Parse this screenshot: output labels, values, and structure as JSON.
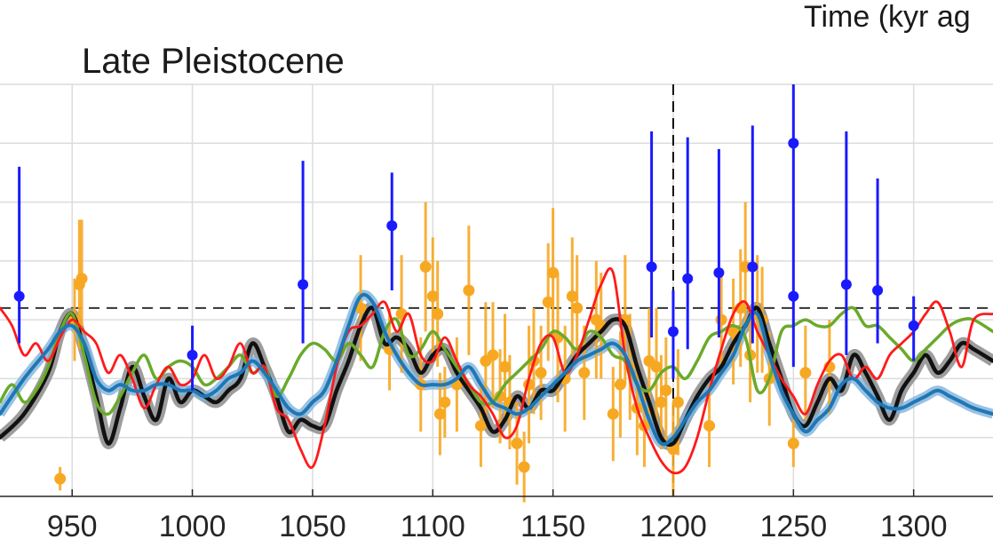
{
  "chart_data": {
    "type": "line",
    "title": "Late Pleistocene",
    "xlabel": "Time (kyr ag",
    "ylabel": "",
    "xlim": [
      920,
      1333
    ],
    "ylim": [
      0,
      7
    ],
    "x_ticks": [
      950,
      1000,
      1050,
      1100,
      1150,
      1200,
      1250,
      1300
    ],
    "grid": true,
    "reference_lines": {
      "horizontal_y": 3.2,
      "vertical_x": 1200
    },
    "colors": {
      "black": "#111111",
      "black_band": "#8c8c8c",
      "blue": "#1f77b4",
      "blue_band": "#7fb3dc",
      "red": "#ff1a1a",
      "green": "#6aaa2a",
      "orange": "#f7a823",
      "darkblue": "#1a1aff",
      "grid": "#dcdcdc",
      "refline": "#333333"
    },
    "series": [
      {
        "style": "black",
        "x": [
          920,
          930,
          940,
          945,
          950,
          955,
          960,
          965,
          970,
          975,
          980,
          985,
          990,
          995,
          1000,
          1005,
          1010,
          1015,
          1020,
          1025,
          1030,
          1035,
          1040,
          1045,
          1050,
          1055,
          1060,
          1065,
          1070,
          1075,
          1080,
          1085,
          1090,
          1095,
          1100,
          1105,
          1110,
          1115,
          1120,
          1125,
          1130,
          1135,
          1140,
          1145,
          1150,
          1155,
          1160,
          1165,
          1170,
          1175,
          1180,
          1185,
          1190,
          1195,
          1200,
          1205,
          1210,
          1215,
          1220,
          1225,
          1230,
          1235,
          1240,
          1245,
          1250,
          1255,
          1260,
          1265,
          1270,
          1275,
          1280,
          1285,
          1290,
          1295,
          1300,
          1305,
          1310,
          1315,
          1320,
          1325,
          1333
        ],
        "y": [
          1.0,
          1.4,
          2.1,
          2.8,
          3.1,
          2.5,
          1.7,
          0.9,
          1.5,
          2.2,
          1.7,
          1.3,
          2.0,
          1.6,
          1.8,
          1.7,
          1.6,
          1.8,
          2.0,
          2.6,
          2.2,
          1.7,
          1.1,
          1.3,
          1.2,
          1.2,
          1.8,
          2.3,
          2.9,
          3.2,
          2.6,
          2.7,
          2.5,
          2.1,
          2.4,
          2.5,
          2.1,
          1.8,
          1.5,
          1.1,
          1.3,
          1.7,
          1.5,
          1.8,
          1.8,
          2.1,
          2.4,
          2.6,
          2.8,
          3.0,
          2.9,
          2.2,
          1.6,
          1.0,
          0.9,
          1.3,
          1.7,
          2.0,
          2.2,
          2.6,
          2.9,
          3.2,
          2.6,
          2.0,
          1.4,
          1.2,
          1.6,
          2.0,
          1.8,
          2.4,
          2.1,
          1.7,
          1.3,
          1.8,
          2.1,
          2.4,
          2.1,
          2.3,
          2.6,
          2.5,
          2.3
        ]
      },
      {
        "style": "blue",
        "x": [
          920,
          930,
          940,
          945,
          950,
          955,
          960,
          965,
          970,
          975,
          980,
          985,
          990,
          995,
          1000,
          1005,
          1010,
          1015,
          1020,
          1025,
          1030,
          1035,
          1040,
          1045,
          1050,
          1055,
          1060,
          1065,
          1070,
          1075,
          1080,
          1085,
          1090,
          1095,
          1100,
          1105,
          1110,
          1115,
          1120,
          1125,
          1130,
          1135,
          1140,
          1145,
          1150,
          1155,
          1160,
          1165,
          1170,
          1175,
          1180,
          1185,
          1190,
          1195,
          1200,
          1205,
          1210,
          1215,
          1220,
          1225,
          1230,
          1235,
          1240,
          1245,
          1250,
          1255,
          1260,
          1265,
          1270,
          1275,
          1280,
          1285,
          1290,
          1295,
          1300,
          1305,
          1310,
          1315,
          1320,
          1325,
          1333
        ],
        "y": [
          1.4,
          2.0,
          2.5,
          2.8,
          2.9,
          2.6,
          2.0,
          1.8,
          1.9,
          1.8,
          1.8,
          1.9,
          1.9,
          1.8,
          1.8,
          1.7,
          1.8,
          2.0,
          2.1,
          2.3,
          2.1,
          1.8,
          1.5,
          1.4,
          1.6,
          1.8,
          2.3,
          2.9,
          3.4,
          3.3,
          2.8,
          2.4,
          2.1,
          1.9,
          1.9,
          1.9,
          2.0,
          2.2,
          1.9,
          1.6,
          1.5,
          1.4,
          1.5,
          1.7,
          1.9,
          2.1,
          2.3,
          2.4,
          2.5,
          2.6,
          2.4,
          1.9,
          1.3,
          0.9,
          1.0,
          1.3,
          1.6,
          1.8,
          2.1,
          2.4,
          2.9,
          3.1,
          2.4,
          1.8,
          1.4,
          1.1,
          1.3,
          1.5,
          1.9,
          2.0,
          1.8,
          1.6,
          1.5,
          1.5,
          1.6,
          1.7,
          1.8,
          1.7,
          1.6,
          1.5,
          1.4
        ]
      },
      {
        "style": "red",
        "x": [
          920,
          925,
          930,
          935,
          940,
          945,
          950,
          955,
          960,
          965,
          970,
          975,
          980,
          985,
          990,
          995,
          1000,
          1005,
          1010,
          1015,
          1020,
          1025,
          1030,
          1035,
          1040,
          1045,
          1050,
          1055,
          1060,
          1065,
          1070,
          1075,
          1080,
          1085,
          1090,
          1095,
          1100,
          1105,
          1110,
          1115,
          1120,
          1125,
          1130,
          1135,
          1140,
          1145,
          1150,
          1155,
          1160,
          1165,
          1170,
          1175,
          1180,
          1185,
          1190,
          1195,
          1200,
          1205,
          1210,
          1215,
          1220,
          1225,
          1230,
          1235,
          1240,
          1245,
          1250,
          1255,
          1260,
          1265,
          1270,
          1275,
          1280,
          1285,
          1290,
          1295,
          1300,
          1305,
          1310,
          1315,
          1320,
          1325,
          1333
        ],
        "y": [
          3.2,
          2.9,
          2.4,
          2.6,
          2.3,
          2.7,
          3.0,
          2.8,
          2.6,
          2.1,
          2.4,
          2.0,
          1.5,
          1.9,
          2.2,
          1.9,
          2.0,
          2.4,
          2.0,
          2.2,
          2.6,
          2.1,
          2.2,
          1.5,
          1.3,
          0.8,
          0.5,
          1.2,
          2.2,
          2.8,
          2.9,
          3.1,
          3.3,
          2.8,
          3.1,
          2.4,
          2.3,
          2.7,
          2.3,
          1.9,
          1.7,
          1.4,
          1.0,
          1.2,
          2.0,
          2.6,
          2.7,
          2.1,
          2.4,
          3.0,
          3.6,
          3.8,
          2.4,
          1.5,
          1.0,
          0.6,
          0.4,
          0.5,
          1.0,
          1.8,
          2.5,
          3.1,
          3.3,
          2.8,
          2.4,
          2.0,
          1.7,
          1.4,
          1.9,
          2.3,
          2.4,
          2.0,
          2.2,
          2.0,
          2.4,
          2.6,
          2.8,
          3.1,
          3.3,
          2.8,
          2.2,
          3.0,
          3.1
        ]
      },
      {
        "style": "green",
        "x": [
          920,
          925,
          930,
          935,
          940,
          945,
          950,
          955,
          960,
          965,
          970,
          975,
          980,
          985,
          990,
          995,
          1000,
          1005,
          1010,
          1015,
          1020,
          1025,
          1030,
          1035,
          1040,
          1045,
          1050,
          1055,
          1060,
          1065,
          1070,
          1075,
          1080,
          1085,
          1090,
          1095,
          1100,
          1105,
          1110,
          1115,
          1120,
          1125,
          1130,
          1135,
          1140,
          1145,
          1150,
          1155,
          1160,
          1165,
          1170,
          1175,
          1180,
          1185,
          1190,
          1195,
          1200,
          1205,
          1210,
          1215,
          1220,
          1225,
          1230,
          1235,
          1240,
          1245,
          1250,
          1255,
          1260,
          1265,
          1270,
          1275,
          1280,
          1285,
          1290,
          1295,
          1300,
          1305,
          1310,
          1315,
          1320,
          1325,
          1333
        ],
        "y": [
          1.6,
          1.9,
          1.6,
          1.8,
          2.2,
          2.8,
          3.1,
          2.4,
          1.6,
          1.4,
          1.7,
          2.1,
          2.4,
          2.0,
          2.2,
          2.3,
          2.2,
          1.9,
          2.0,
          2.2,
          2.4,
          2.1,
          2.2,
          1.7,
          2.0,
          2.4,
          2.6,
          2.5,
          2.3,
          2.6,
          2.4,
          2.2,
          2.8,
          3.0,
          2.4,
          2.5,
          2.8,
          2.5,
          2.2,
          1.9,
          1.6,
          1.6,
          1.9,
          2.1,
          2.3,
          2.5,
          2.8,
          2.7,
          2.5,
          2.8,
          2.7,
          2.4,
          2.3,
          1.9,
          1.8,
          2.1,
          2.2,
          2.0,
          2.3,
          2.7,
          2.8,
          2.9,
          2.7,
          1.8,
          2.0,
          2.8,
          2.9,
          3.0,
          2.9,
          2.9,
          3.1,
          3.2,
          2.9,
          2.9,
          2.7,
          2.5,
          2.3,
          2.5,
          2.7,
          2.9,
          3.0,
          3.0,
          2.8
        ]
      }
    ],
    "proxy_orange": {
      "x": [
        945,
        951,
        953,
        954,
        1070,
        1082,
        1087,
        1095,
        1097,
        1100,
        1102,
        1103,
        1105,
        1110,
        1115,
        1120,
        1122,
        1125,
        1128,
        1130,
        1132,
        1135,
        1138,
        1140,
        1142,
        1145,
        1148,
        1150,
        1152,
        1155,
        1158,
        1160,
        1163,
        1168,
        1170,
        1175,
        1178,
        1180,
        1182,
        1185,
        1188,
        1190,
        1193,
        1195,
        1197,
        1200,
        1202,
        1215,
        1220,
        1225,
        1228,
        1230,
        1232,
        1235,
        1237,
        1240,
        1250,
        1255,
        1265
      ],
      "y": [
        0.3,
        3.0,
        3.6,
        3.7,
        3.2,
        2.5,
        3.1,
        1.9,
        3.9,
        3.4,
        3.1,
        1.4,
        1.6,
        1.9,
        3.5,
        1.2,
        2.3,
        2.4,
        1.7,
        2.2,
        1.6,
        0.9,
        0.5,
        1.9,
        2.3,
        2.1,
        3.3,
        3.8,
        2.7,
        2.0,
        3.4,
        3.2,
        2.1,
        3.0,
        2.9,
        1.4,
        1.9,
        3.0,
        2.2,
        1.5,
        1.2,
        2.3,
        2.2,
        1.6,
        1.8,
        0.8,
        1.6,
        1.2,
        3.0,
        2.8,
        3.2,
        3.9,
        2.4,
        3.1,
        3.0,
        2.0,
        0.9,
        2.1,
        2.2
      ],
      "err": [
        0.2,
        0.7,
        1.1,
        1.0,
        0.9,
        0.7,
        1.0,
        0.8,
        1.1,
        1.0,
        0.9,
        0.7,
        0.6,
        0.8,
        1.1,
        0.7,
        1.0,
        0.9,
        0.8,
        0.9,
        0.8,
        0.7,
        0.6,
        1.0,
        0.9,
        0.8,
        1.0,
        1.1,
        1.1,
        0.9,
        1.0,
        0.9,
        0.8,
        1.0,
        0.9,
        0.8,
        0.9,
        1.1,
        0.9,
        0.8,
        0.7,
        0.9,
        1.0,
        0.8,
        0.9,
        0.8,
        0.9,
        0.7,
        0.8,
        0.9,
        1.0,
        1.1,
        0.8,
        1.0,
        0.9,
        0.8,
        0.4,
        0.8,
        0.8
      ]
    },
    "proxy_blue": {
      "x": [
        928,
        1000,
        1046,
        1083,
        1191,
        1200,
        1206,
        1219,
        1233,
        1250,
        1272,
        1285,
        1300
      ],
      "y": [
        3.4,
        2.4,
        3.6,
        4.6,
        3.9,
        2.8,
        3.7,
        3.8,
        3.9,
        3.4,
        3.6,
        3.5,
        2.9
      ],
      "ylo": [
        2.6,
        1.8,
        2.6,
        3.5,
        2.7,
        2.0,
        2.5,
        2.7,
        2.6,
        2.2,
        2.4,
        2.6,
        2.3
      ],
      "yhi": [
        5.6,
        2.9,
        5.7,
        5.5,
        6.2,
        3.5,
        6.1,
        5.9,
        6.3,
        7.0,
        6.2,
        5.4,
        3.4
      ],
      "ytop": [
        5.6,
        2.9,
        5.7,
        5.5,
        6.2,
        3.5,
        6.1,
        5.9,
        6.3,
        7.0,
        6.2,
        5.4,
        3.4
      ],
      "highlight": {
        "x": 1250,
        "y": 6.0
      }
    }
  }
}
